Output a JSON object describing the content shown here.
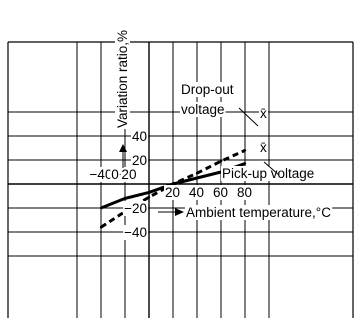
{
  "chart_data": {
    "type": "line",
    "xlabel": "Ambient temperature,°C",
    "ylabel": "Variation ratio,%",
    "xlim": [
      -60,
      100
    ],
    "ylim": [
      -60,
      60
    ],
    "grid": true,
    "x_ticks": [
      {
        "value": -40,
        "label": "−40"
      },
      {
        "value": -20,
        "label": "−20"
      },
      {
        "value": 0,
        "label": "0"
      },
      {
        "value": 20,
        "label": "20"
      },
      {
        "value": 40,
        "label": "40"
      },
      {
        "value": 60,
        "label": "60"
      },
      {
        "value": 80,
        "label": "80"
      }
    ],
    "y_ticks": [
      {
        "value": 40,
        "label": "40"
      },
      {
        "value": 20,
        "label": "20"
      },
      {
        "value": -20,
        "label": "−20"
      },
      {
        "value": -40,
        "label": "−40"
      }
    ],
    "series": [
      {
        "name": "Drop-out voltage",
        "marker_label": "x̄",
        "style": "dashed",
        "x": [
          -40,
          -20,
          0,
          20,
          40,
          60,
          80
        ],
        "y": [
          -36,
          -23,
          -11,
          0,
          9,
          19,
          28
        ]
      },
      {
        "name": "Pick-up voltage",
        "marker_label": "x̄",
        "style": "solid",
        "x": [
          -40,
          -20,
          0,
          20,
          40,
          60,
          80
        ],
        "y": [
          -20,
          -12,
          -7,
          0,
          5,
          10,
          17
        ]
      }
    ],
    "colors": {
      "line": "#000000",
      "grid": "#000000",
      "background": "#ffffff"
    }
  }
}
